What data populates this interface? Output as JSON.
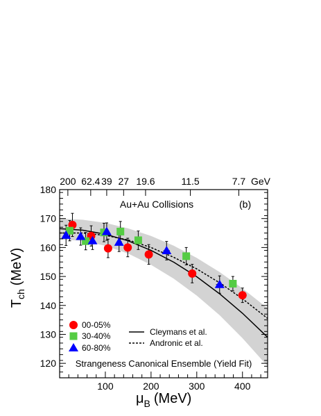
{
  "chart_data": {
    "type": "scatter",
    "xlabel_main": "μ",
    "xlabel_sub": "B",
    "xlabel_unit": "(MeV)",
    "ylabel_main": "T",
    "ylabel_sub": "ch",
    "ylabel_unit": "(MeV)",
    "xlim": [
      0,
      455
    ],
    "ylim": [
      115,
      180
    ],
    "x_ticks": [
      100,
      200,
      300,
      400
    ],
    "y_ticks": [
      120,
      130,
      140,
      150,
      160,
      170,
      180
    ],
    "top_axis_labels": [
      {
        "text": "200",
        "mu": 18
      },
      {
        "text": "62.4",
        "mu": 68
      },
      {
        "text": "39",
        "mu": 103
      },
      {
        "text": "27",
        "mu": 140
      },
      {
        "text": "19.6",
        "mu": 188
      },
      {
        "text": "11.5",
        "mu": 286
      },
      {
        "text": "7.7",
        "mu": 392
      }
    ],
    "top_axis_unit": "GeV",
    "annotation_title": "Au+Au Collisions",
    "panel_label": "(b)",
    "footer_text": "Strangeness Canonical Ensemble (Yield Fit)",
    "series": [
      {
        "name": "00-05%",
        "marker": "circle",
        "color": "#ff0000",
        "points": [
          {
            "x": 28,
            "y": 167.8,
            "yerr": 4.0,
            "xerr": 3
          },
          {
            "x": 69,
            "y": 164.0,
            "yerr": 3.5,
            "xerr": 3
          },
          {
            "x": 106,
            "y": 159.7,
            "yerr": 3.2,
            "xerr": 5
          },
          {
            "x": 149,
            "y": 160.0,
            "yerr": 3.2,
            "xerr": 6
          },
          {
            "x": 195,
            "y": 157.6,
            "yerr": 3.4,
            "xerr": 8
          },
          {
            "x": 290,
            "y": 151.0,
            "yerr": 3.2,
            "xerr": 8
          },
          {
            "x": 400,
            "y": 143.5,
            "yerr": 2.5,
            "xerr": 9
          }
        ]
      },
      {
        "name": "30-40%",
        "marker": "square",
        "color": "#55cc44",
        "points": [
          {
            "x": 22,
            "y": 165.8,
            "yerr": 3.5,
            "xerr": 3
          },
          {
            "x": 57,
            "y": 162.2,
            "yerr": 3.0,
            "xerr": 3
          },
          {
            "x": 97,
            "y": 165.2,
            "yerr": 3.2,
            "xerr": 4
          },
          {
            "x": 133,
            "y": 165.5,
            "yerr": 3.5,
            "xerr": 5
          },
          {
            "x": 172,
            "y": 162.5,
            "yerr": 3.2,
            "xerr": 7
          },
          {
            "x": 277,
            "y": 157.0,
            "yerr": 3.0,
            "xerr": 8
          },
          {
            "x": 379,
            "y": 147.5,
            "yerr": 2.5,
            "xerr": 8
          }
        ]
      },
      {
        "name": "60-80%",
        "marker": "triangle",
        "color": "#0000ff",
        "points": [
          {
            "x": 14,
            "y": 164.2,
            "yerr": 3.5,
            "xerr": 3
          },
          {
            "x": 46,
            "y": 163.8,
            "yerr": 3.0,
            "xerr": 3
          },
          {
            "x": 72,
            "y": 162.3,
            "yerr": 3.0,
            "xerr": 4
          },
          {
            "x": 103,
            "y": 165.5,
            "yerr": 3.0,
            "xerr": 4
          },
          {
            "x": 130,
            "y": 161.8,
            "yerr": 3.2,
            "xerr": 5
          },
          {
            "x": 234,
            "y": 158.9,
            "yerr": 3.2,
            "xerr": 7
          },
          {
            "x": 350,
            "y": 147.2,
            "yerr": 3.0,
            "xerr": 8
          }
        ]
      }
    ],
    "curves": [
      {
        "name": "Cleymans et al.",
        "style": "solid",
        "x": [
          0,
          50,
          100,
          150,
          200,
          250,
          300,
          350,
          400,
          455
        ],
        "y": [
          166.5,
          166.0,
          164.6,
          162.3,
          159.0,
          154.9,
          149.9,
          144.0,
          137.3,
          129.0
        ]
      },
      {
        "name": "Andronic et al.",
        "style": "dashed",
        "x": [
          0,
          50,
          100,
          150,
          200,
          250,
          300,
          350,
          400,
          455
        ],
        "y": [
          165.0,
          165.0,
          164.2,
          162.6,
          160.0,
          156.6,
          152.6,
          147.8,
          142.3,
          135.5
        ]
      }
    ],
    "band": {
      "x": [
        0,
        50,
        100,
        150,
        200,
        250,
        300,
        350,
        400,
        455
      ],
      "upper": [
        170.0,
        169.6,
        168.5,
        166.6,
        164.0,
        160.6,
        156.4,
        151.5,
        145.9,
        139.0
      ],
      "lower": [
        162.8,
        162.3,
        160.6,
        157.9,
        154.0,
        149.2,
        143.4,
        136.6,
        128.7,
        119.0
      ],
      "color": "#d3d3d3"
    },
    "grid": false,
    "legend_placement": "bottom-left"
  }
}
